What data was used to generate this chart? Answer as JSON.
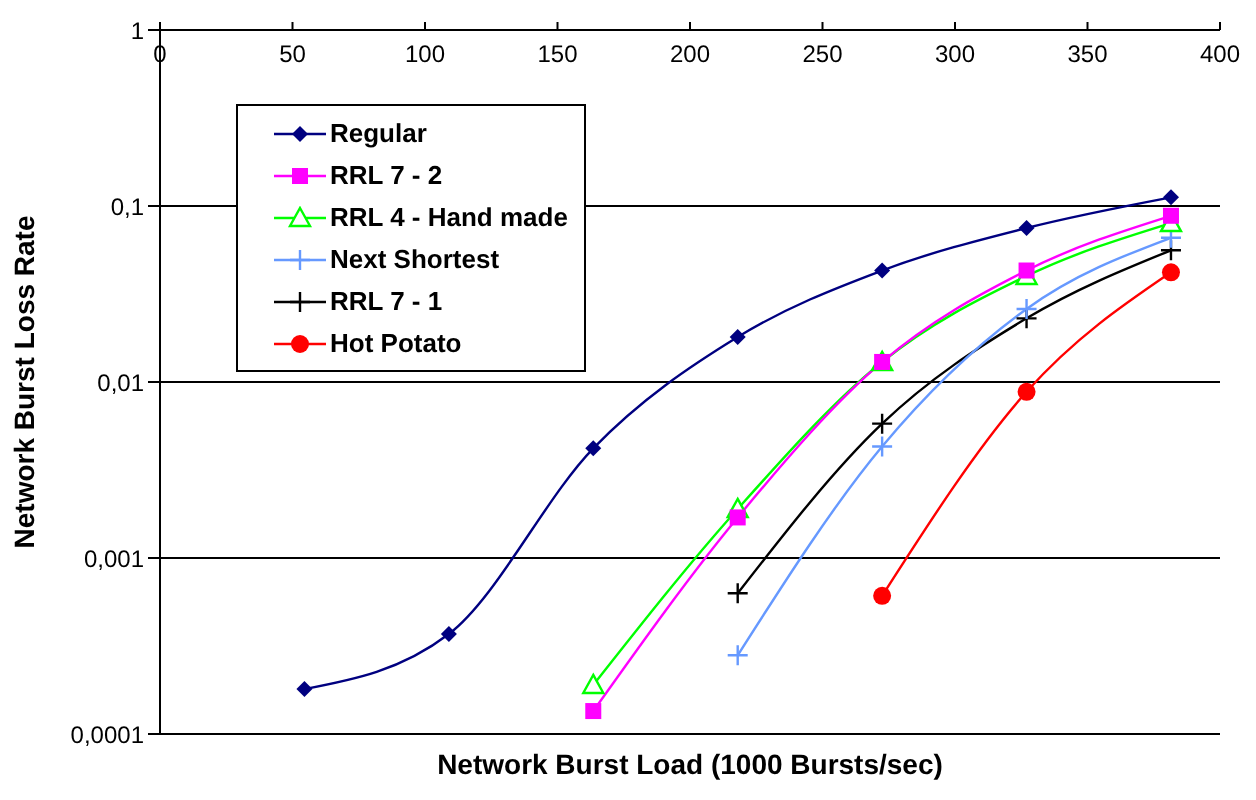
{
  "chart_data": {
    "type": "line",
    "xlabel": "Network Burst Load (1000 Bursts/sec)",
    "ylabel": "Network Burst Loss Rate",
    "log": "y",
    "grid": "y",
    "legend": "top left",
    "xlim": [
      0,
      400
    ],
    "xticks": [
      0,
      50,
      100,
      150,
      200,
      250,
      300,
      350,
      400
    ],
    "ylim": [
      0.0001,
      1
    ],
    "yticks": [
      {
        "value": 0.0001,
        "label": "0,0001"
      },
      {
        "value": 0.001,
        "label": "0,001"
      },
      {
        "value": 0.01,
        "label": "0,01"
      },
      {
        "value": 0.1,
        "label": "0,1"
      },
      1
    ],
    "series": [
      {
        "name": "Regular",
        "color": "#000080",
        "marker": "diamond",
        "x": [
          54.5,
          109,
          163.5,
          218,
          272.5,
          327,
          381.5
        ],
        "values": [
          0.00018,
          0.00037,
          0.0042,
          0.018,
          0.043,
          0.075,
          0.112
        ]
      },
      {
        "name": "RRL 7 - 2",
        "color": "#ff00ff",
        "marker": "square",
        "x": [
          163.5,
          218,
          272.5,
          327,
          381.5
        ],
        "values": [
          0.000135,
          0.0017,
          0.013,
          0.043,
          0.088
        ]
      },
      {
        "name": "RRL 4 - Hand made",
        "color": "#00ff00",
        "marker": "triangle",
        "x": [
          163.5,
          218,
          272.5,
          327,
          381.5
        ],
        "values": [
          0.00019,
          0.0019,
          0.013,
          0.04,
          0.08
        ]
      },
      {
        "name": "Next Shortest",
        "color": "#6699ff",
        "marker": "cross",
        "x": [
          218,
          272.5,
          327,
          381.5
        ],
        "values": [
          0.00028,
          0.0043,
          0.026,
          0.066
        ]
      },
      {
        "name": "RRL 7 - 1",
        "color": "#000000",
        "marker": "cross",
        "x": [
          218,
          272.5,
          327,
          381.5
        ],
        "values": [
          0.00063,
          0.0058,
          0.023,
          0.056
        ]
      },
      {
        "name": "Hot Potato",
        "color": "#ff0000",
        "marker": "circle",
        "x": [
          272.5,
          327,
          381.5
        ],
        "values": [
          0.00061,
          0.0088,
          0.042
        ]
      }
    ]
  }
}
